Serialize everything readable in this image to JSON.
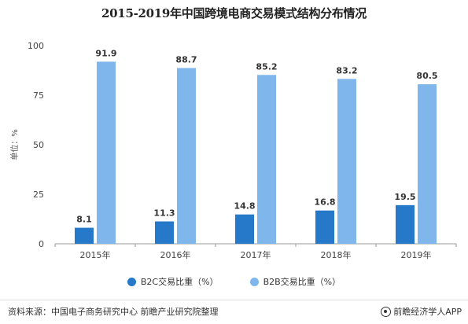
{
  "chart_data": {
    "type": "bar",
    "title": "2015-2019年中国跨境电商交易模式结构分布情况",
    "ylabel": "单位：%",
    "xlabel": "",
    "categories": [
      "2015年",
      "2016年",
      "2017年",
      "2018年",
      "2019年"
    ],
    "series": [
      {
        "name": "B2C交易比重（%）",
        "values": [
          8.1,
          11.3,
          14.8,
          16.8,
          19.5
        ],
        "color": "#2678c8"
      },
      {
        "name": "B2B交易比重（%）",
        "values": [
          91.9,
          88.7,
          85.2,
          83.2,
          80.5
        ],
        "color": "#7fb6ec"
      }
    ],
    "ylim": [
      0,
      100
    ],
    "yticks": [
      0,
      25,
      50,
      75,
      100
    ],
    "grid": false,
    "legend_position": "bottom"
  },
  "footer": {
    "source": "资料来源：中国电子商务研究中心 前瞻产业研究院整理",
    "brand": "前瞻经济学人APP",
    "brand_icon": "brand-logo-icon"
  }
}
